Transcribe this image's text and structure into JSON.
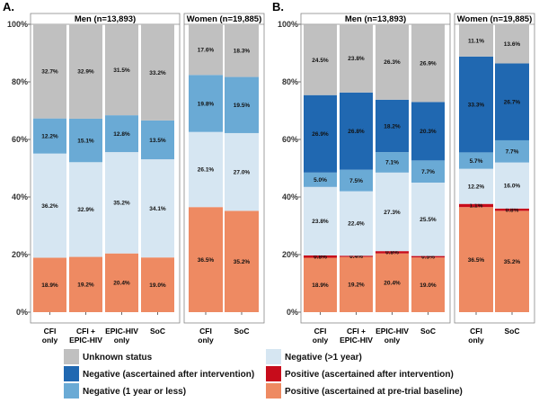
{
  "colors": {
    "unknown": "#c0c0c0",
    "neg_after": "#2068b1",
    "neg_1yr": "#6aaad5",
    "neg_gt1yr": "#d6e6f2",
    "pos_after": "#c70c1b",
    "pos_baseline": "#ee8a62"
  },
  "chart_data": [
    {
      "type": "bar",
      "panel": "A.",
      "stacked": true,
      "ylim": [
        0,
        100
      ],
      "yticks": [
        "0%",
        "20%",
        "40%",
        "60%",
        "80%",
        "100%"
      ],
      "groups": [
        {
          "title": "Men (n=13,893)",
          "categories": [
            {
              "line1": "CFI",
              "line2": "only"
            },
            {
              "line1": "CFI +",
              "line2": "EPIC-HIV"
            },
            {
              "line1": "EPIC-HIV",
              "line2": "only"
            },
            {
              "line1": "SoC",
              "line2": ""
            }
          ],
          "series": [
            {
              "key": "pos_baseline",
              "values": [
                18.9,
                19.2,
                20.4,
                19.0
              ],
              "labels": [
                "18.9%",
                "19.2%",
                "20.4%",
                "19.0%"
              ]
            },
            {
              "key": "neg_gt1yr",
              "values": [
                36.2,
                32.9,
                35.2,
                34.1
              ],
              "labels": [
                "36.2%",
                "32.9%",
                "35.2%",
                "34.1%"
              ]
            },
            {
              "key": "neg_1yr",
              "values": [
                12.2,
                15.1,
                12.8,
                13.5
              ],
              "labels": [
                "12.2%",
                "15.1%",
                "12.8%",
                "13.5%"
              ]
            },
            {
              "key": "unknown",
              "values": [
                32.7,
                32.9,
                31.5,
                33.2
              ],
              "labels": [
                "32.7%",
                "32.9%",
                "31.5%",
                "33.2%"
              ]
            }
          ]
        },
        {
          "title": "Women (n=19,885)",
          "categories": [
            {
              "line1": "CFI",
              "line2": "only"
            },
            {
              "line1": "SoC",
              "line2": ""
            }
          ],
          "series": [
            {
              "key": "pos_baseline",
              "values": [
                36.5,
                35.2
              ],
              "labels": [
                "36.5%",
                "35.2%"
              ]
            },
            {
              "key": "neg_gt1yr",
              "values": [
                26.1,
                27.0
              ],
              "labels": [
                "26.1%",
                "27.0%"
              ]
            },
            {
              "key": "neg_1yr",
              "values": [
                19.8,
                19.5
              ],
              "labels": [
                "19.8%",
                "19.5%"
              ]
            },
            {
              "key": "unknown",
              "values": [
                17.6,
                18.3
              ],
              "labels": [
                "17.6%",
                "18.3%"
              ]
            }
          ]
        }
      ]
    },
    {
      "type": "bar",
      "panel": "B.",
      "stacked": true,
      "ylim": [
        0,
        100
      ],
      "yticks": [
        "0%",
        "20%",
        "40%",
        "60%",
        "80%",
        "100%"
      ],
      "groups": [
        {
          "title": "Men (n=13,893)",
          "categories": [
            {
              "line1": "CFI",
              "line2": "only"
            },
            {
              "line1": "CFI +",
              "line2": "EPIC-HIV"
            },
            {
              "line1": "EPIC-HIV",
              "line2": "only"
            },
            {
              "line1": "SoC",
              "line2": ""
            }
          ],
          "series": [
            {
              "key": "pos_baseline",
              "values": [
                18.9,
                19.2,
                20.4,
                19.0
              ],
              "labels": [
                "18.9%",
                "19.2%",
                "20.4%",
                "19.0%"
              ]
            },
            {
              "key": "pos_after",
              "values": [
                0.8,
                0.4,
                0.8,
                0.5
              ],
              "labels": [
                "0.8%",
                "0.4%",
                "0.8%",
                "0.5%"
              ]
            },
            {
              "key": "neg_gt1yr",
              "values": [
                23.8,
                22.4,
                27.3,
                25.5
              ],
              "labels": [
                "23.8%",
                "22.4%",
                "27.3%",
                "25.5%"
              ]
            },
            {
              "key": "neg_1yr",
              "values": [
                5.0,
                7.5,
                7.1,
                7.7
              ],
              "labels": [
                "5.0%",
                "7.5%",
                "7.1%",
                "7.7%"
              ]
            },
            {
              "key": "neg_after",
              "values": [
                26.9,
                26.8,
                18.2,
                20.3
              ],
              "labels": [
                "26.9%",
                "26.8%",
                "18.2%",
                "20.3%"
              ]
            },
            {
              "key": "unknown",
              "values": [
                24.5,
                23.8,
                26.3,
                26.9
              ],
              "labels": [
                "24.5%",
                "23.8%",
                "26.3%",
                "26.9%"
              ]
            }
          ]
        },
        {
          "title": "Women (n=19,885)",
          "categories": [
            {
              "line1": "CFI",
              "line2": "only"
            },
            {
              "line1": "SoC",
              "line2": ""
            }
          ],
          "series": [
            {
              "key": "pos_baseline",
              "values": [
                36.5,
                35.2
              ],
              "labels": [
                "36.5%",
                "35.2%"
              ]
            },
            {
              "key": "pos_after",
              "values": [
                1.1,
                0.8
              ],
              "labels": [
                "1.1%",
                "0.8%"
              ]
            },
            {
              "key": "neg_gt1yr",
              "values": [
                12.2,
                16.0
              ],
              "labels": [
                "12.2%",
                "16.0%"
              ]
            },
            {
              "key": "neg_1yr",
              "values": [
                5.7,
                7.7
              ],
              "labels": [
                "5.7%",
                "7.7%"
              ]
            },
            {
              "key": "neg_after",
              "values": [
                33.3,
                26.7
              ],
              "labels": [
                "33.3%",
                "26.7%"
              ]
            },
            {
              "key": "unknown",
              "values": [
                11.1,
                13.6
              ],
              "labels": [
                "11.1%",
                "13.6%"
              ]
            }
          ]
        }
      ]
    }
  ],
  "legend": [
    {
      "key": "unknown",
      "label": "Unknown status"
    },
    {
      "key": "neg_gt1yr",
      "label": "Negative (>1 year)"
    },
    {
      "key": "neg_after",
      "label": "Negative (ascertained after intervention)"
    },
    {
      "key": "pos_after",
      "label": "Positive (ascertained after intervention)"
    },
    {
      "key": "neg_1yr",
      "label": "Negative (1 year or less)"
    },
    {
      "key": "pos_baseline",
      "label": "Positive (ascertained at pre-trial baseline)"
    }
  ]
}
